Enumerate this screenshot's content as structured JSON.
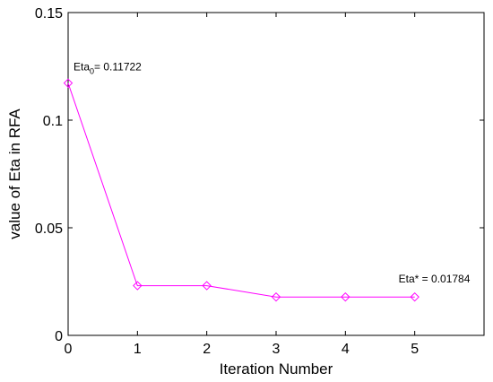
{
  "chart_data": {
    "type": "line",
    "title": "",
    "xlabel": "Iteration Number",
    "ylabel": "value of Eta in RFA",
    "xlim": [
      0,
      6
    ],
    "ylim": [
      0,
      0.15
    ],
    "x_ticks": [
      0,
      1,
      2,
      3,
      4,
      5
    ],
    "x_tick_labels": [
      "0",
      "1",
      "2",
      "3",
      "4",
      "5"
    ],
    "y_ticks": [
      0,
      0.05,
      0.1,
      0.15
    ],
    "y_tick_labels": [
      "0",
      "0.05",
      "0.1",
      "0.15"
    ],
    "grid": false,
    "series": [
      {
        "x": [
          0,
          1,
          2,
          3,
          4,
          5
        ],
        "values": [
          0.11722,
          0.0231,
          0.0231,
          0.01784,
          0.01784,
          0.01784
        ],
        "color": "#ff00ff",
        "marker": "diamond"
      }
    ],
    "annotations": [
      {
        "base": "Eta",
        "sub": "0",
        "rest": "= 0.11722",
        "x": 0,
        "y": 0.11722
      },
      {
        "base": "Eta* = 0.01784",
        "sub": "",
        "rest": "",
        "x": 5,
        "y": 0.01784
      }
    ]
  }
}
